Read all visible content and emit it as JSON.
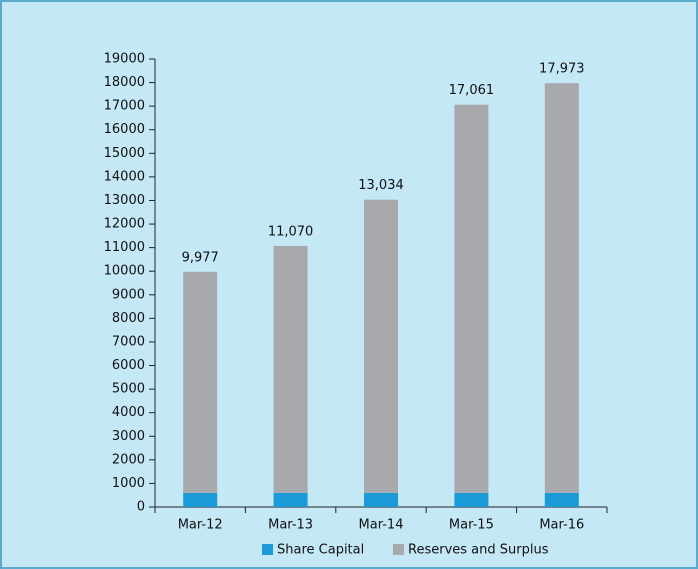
{
  "chart_data": {
    "type": "stacked_bar",
    "categories": [
      "Mar-12",
      "Mar-13",
      "Mar-14",
      "Mar-15",
      "Mar-16"
    ],
    "series": [
      {
        "name": "Share Capital",
        "color": "#1a9ad6",
        "values": [
          600,
          600,
          600,
          600,
          600
        ]
      },
      {
        "name": "Reserves and Surplus",
        "color": "#a7a9ac",
        "values": [
          9377,
          10470,
          12434,
          16461,
          17373
        ]
      }
    ],
    "totals": [
      9977,
      11070,
      13034,
      17061,
      17973
    ],
    "total_labels": [
      "9,977",
      "11,070",
      "13,034",
      "17,061",
      "17,973"
    ],
    "ylim": [
      0,
      19000
    ],
    "yticks": [
      0,
      1000,
      2000,
      3000,
      4000,
      5000,
      6000,
      7000,
      8000,
      9000,
      10000,
      11000,
      12000,
      13000,
      14000,
      15000,
      16000,
      17000,
      18000,
      19000
    ],
    "legend": "bottom"
  }
}
